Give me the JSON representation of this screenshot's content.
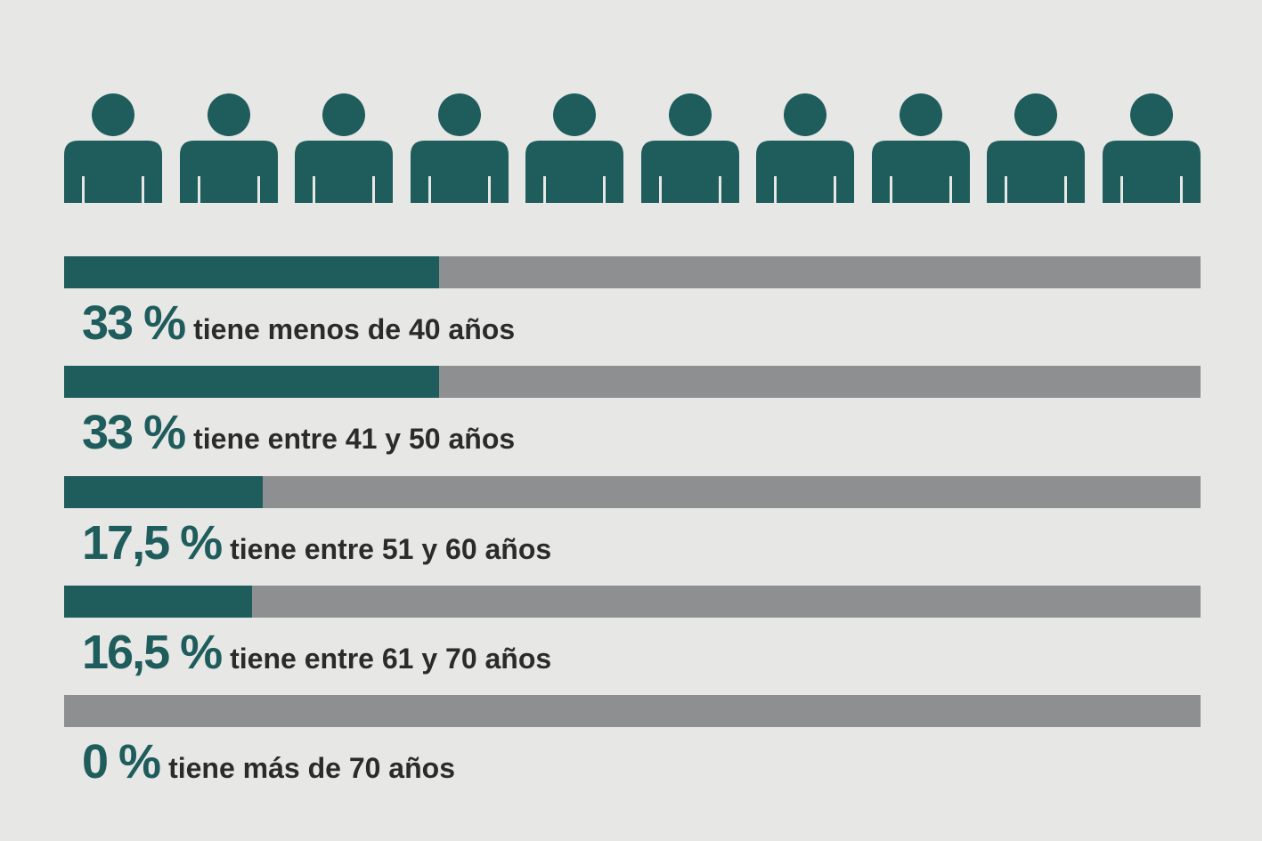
{
  "colors": {
    "accent": "#1f5c5c",
    "track": "#8e8f91",
    "background": "#e7e8e6",
    "text": "#2b2b2b"
  },
  "people_icon": {
    "icon": "person-icon",
    "count": 10
  },
  "chart_data": {
    "type": "bar",
    "orientation": "horizontal",
    "categories": [
      "tiene menos de 40 años",
      "tiene entre 41 y 50 años",
      "tiene entre 51 y 60 años",
      "tiene entre 61 y 70 años",
      "tiene más de 70 años"
    ],
    "values": [
      33,
      33,
      17.5,
      16.5,
      0
    ],
    "value_labels": [
      "33 %",
      "33 %",
      "17,5 %",
      "16,5 %",
      "0 %"
    ],
    "xlim": [
      0,
      100
    ],
    "unit": "%",
    "grid": false
  }
}
